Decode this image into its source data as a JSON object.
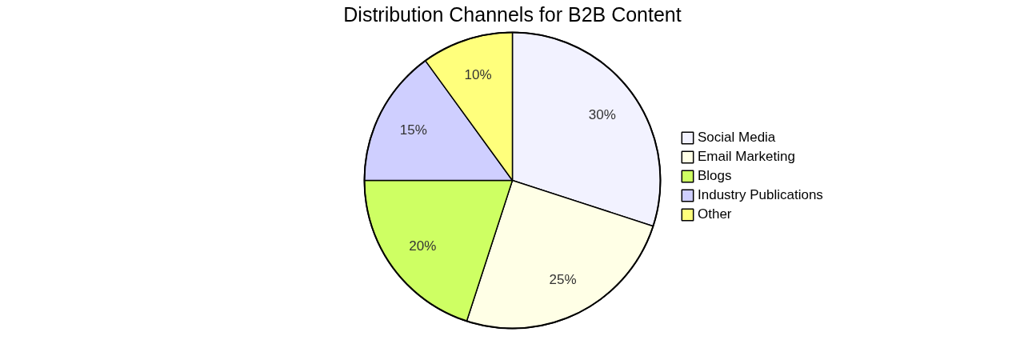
{
  "chart_data": {
    "type": "pie",
    "title": "Distribution Channels for B2B Content",
    "categories": [
      "Social Media",
      "Email Marketing",
      "Blogs",
      "Industry Publications",
      "Other"
    ],
    "values": [
      30,
      25,
      20,
      15,
      10
    ],
    "colors": [
      "#f2f2ff",
      "#ffffe6",
      "#ceff63",
      "#cfcfff",
      "#ffff7c"
    ],
    "value_labels": [
      "30%",
      "25%",
      "20%",
      "15%",
      "10%"
    ],
    "legend": "right"
  }
}
